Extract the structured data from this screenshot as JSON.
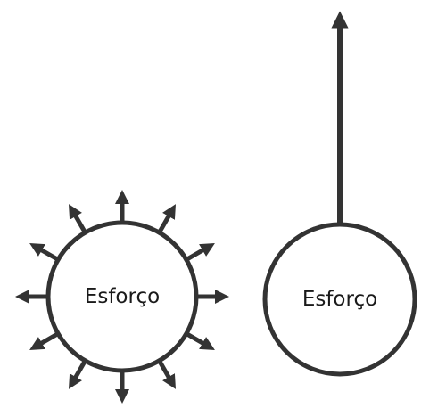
{
  "diagram": {
    "stroke_color": "#333333",
    "fill_color": "#ffffff",
    "text_color": "#1a1a1a",
    "left_circle": {
      "label": "Esforço",
      "arrow_count": 12,
      "arrow_style": "radial"
    },
    "right_circle": {
      "label": "Esforço",
      "arrow_count": 1,
      "arrow_style": "single-upward"
    }
  }
}
